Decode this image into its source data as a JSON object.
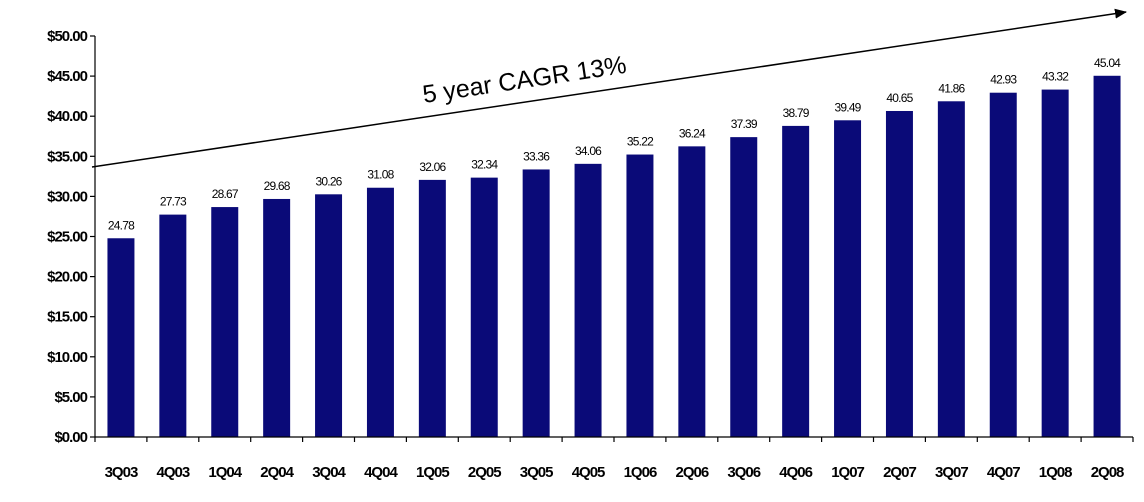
{
  "chart_data": {
    "type": "bar",
    "title": "",
    "xlabel": "",
    "ylabel": "",
    "categories": [
      "3Q03",
      "4Q03",
      "1Q04",
      "2Q04",
      "3Q04",
      "4Q04",
      "1Q05",
      "2Q05",
      "3Q05",
      "4Q05",
      "1Q06",
      "2Q06",
      "3Q06",
      "4Q06",
      "1Q07",
      "2Q07",
      "3Q07",
      "4Q07",
      "1Q08",
      "2Q08"
    ],
    "values": [
      24.78,
      27.73,
      28.67,
      29.68,
      30.26,
      31.08,
      32.06,
      32.34,
      33.36,
      34.06,
      35.22,
      36.24,
      37.39,
      38.79,
      39.49,
      40.65,
      41.86,
      42.93,
      43.32,
      45.04
    ],
    "data_labels": [
      "24.78",
      "27.73",
      "28.67",
      "29.68",
      "30.26",
      "31.08",
      "32.06",
      "32.34",
      "33.36",
      "34.06",
      "35.22",
      "36.24",
      "37.39",
      "38.79",
      "39.49",
      "40.65",
      "41.86",
      "42.93",
      "43.32",
      "45.04"
    ],
    "ylim": [
      0,
      50
    ],
    "y_ticks": [
      0,
      5,
      10,
      15,
      20,
      25,
      30,
      35,
      40,
      45,
      50
    ],
    "y_tick_labels": [
      "$0.00",
      "$5.00",
      "$10.00",
      "$15.00",
      "$20.00",
      "$25.00",
      "$30.00",
      "$35.00",
      "$40.00",
      "$45.00",
      "$50.00"
    ],
    "grid": false,
    "legend": "none",
    "bar_color": "#0a0a78",
    "axis_color": "#000000",
    "annotation": {
      "text": "5 year CAGR 13%",
      "arrow": true
    }
  }
}
